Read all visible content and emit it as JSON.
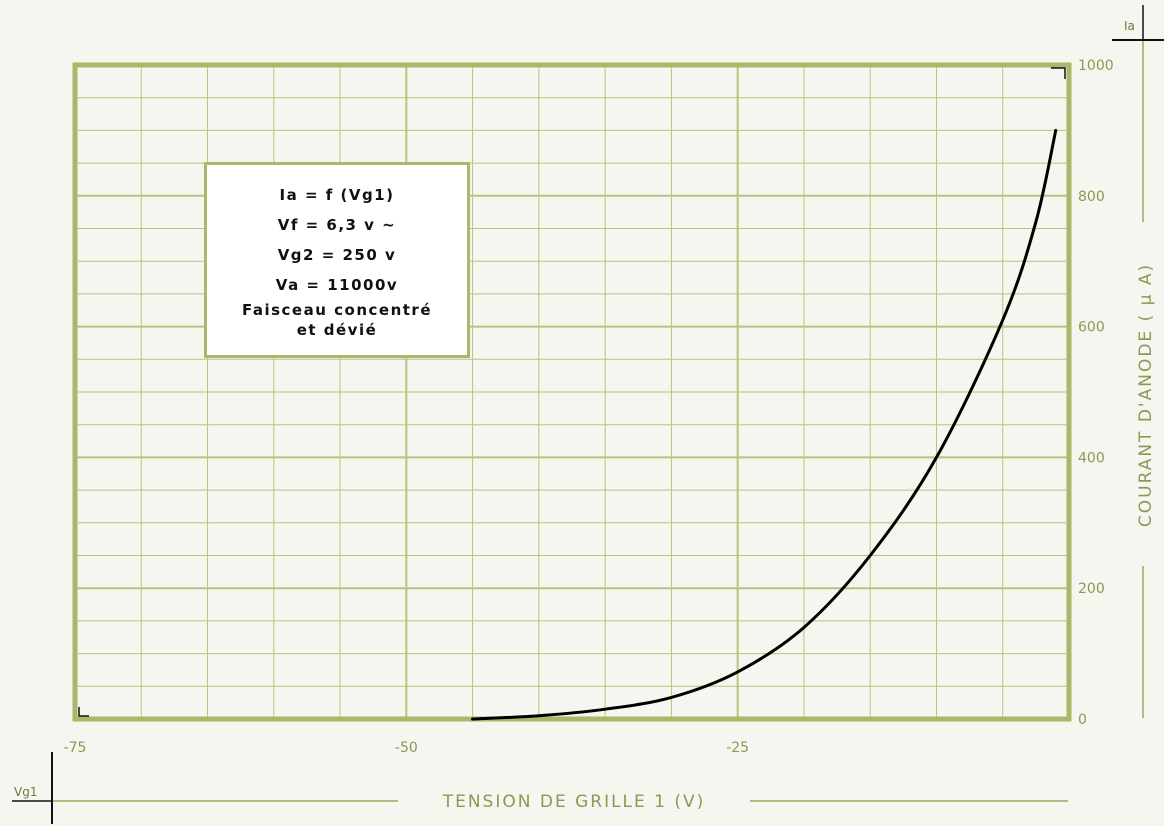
{
  "chart_data": {
    "type": "line",
    "title": "",
    "xlabel": "TENSION DE GRILLE 1 (V)",
    "ylabel": "COURANT D'ANODE ( µ A)",
    "x_axis_symbol": "Vg1",
    "y_axis_symbol": "Ia",
    "xlim": [
      -75,
      0
    ],
    "ylim": [
      0,
      1000
    ],
    "x_ticks": [
      -75,
      -50,
      -25
    ],
    "x_tick_labels": [
      "-75",
      "-50",
      "-25"
    ],
    "y_ticks": [
      0,
      200,
      400,
      600,
      800,
      1000
    ],
    "y_tick_labels": [
      "0",
      "200",
      "400",
      "600",
      "800",
      "1000"
    ],
    "grid": true,
    "legend_position": "top-left",
    "legend": [
      "Ia = f (Vg1)",
      "Vf = 6,3 v ~",
      "Vg2 = 250 v",
      "Va = 11000v",
      "Faisceau concentré",
      "et dévié"
    ],
    "series": [
      {
        "color": "#000000",
        "x": [
          -45,
          -40,
          -35,
          -30,
          -25,
          -20,
          -15,
          -10,
          -5,
          -2.5,
          -1
        ],
        "y": [
          0,
          5,
          15,
          33,
          72,
          140,
          250,
          400,
          610,
          760,
          900
        ]
      }
    ],
    "colors": {
      "grid": "#b7c47e",
      "frame": "#a9b86a",
      "text": "#8a9a52",
      "curve": "#000000"
    }
  }
}
